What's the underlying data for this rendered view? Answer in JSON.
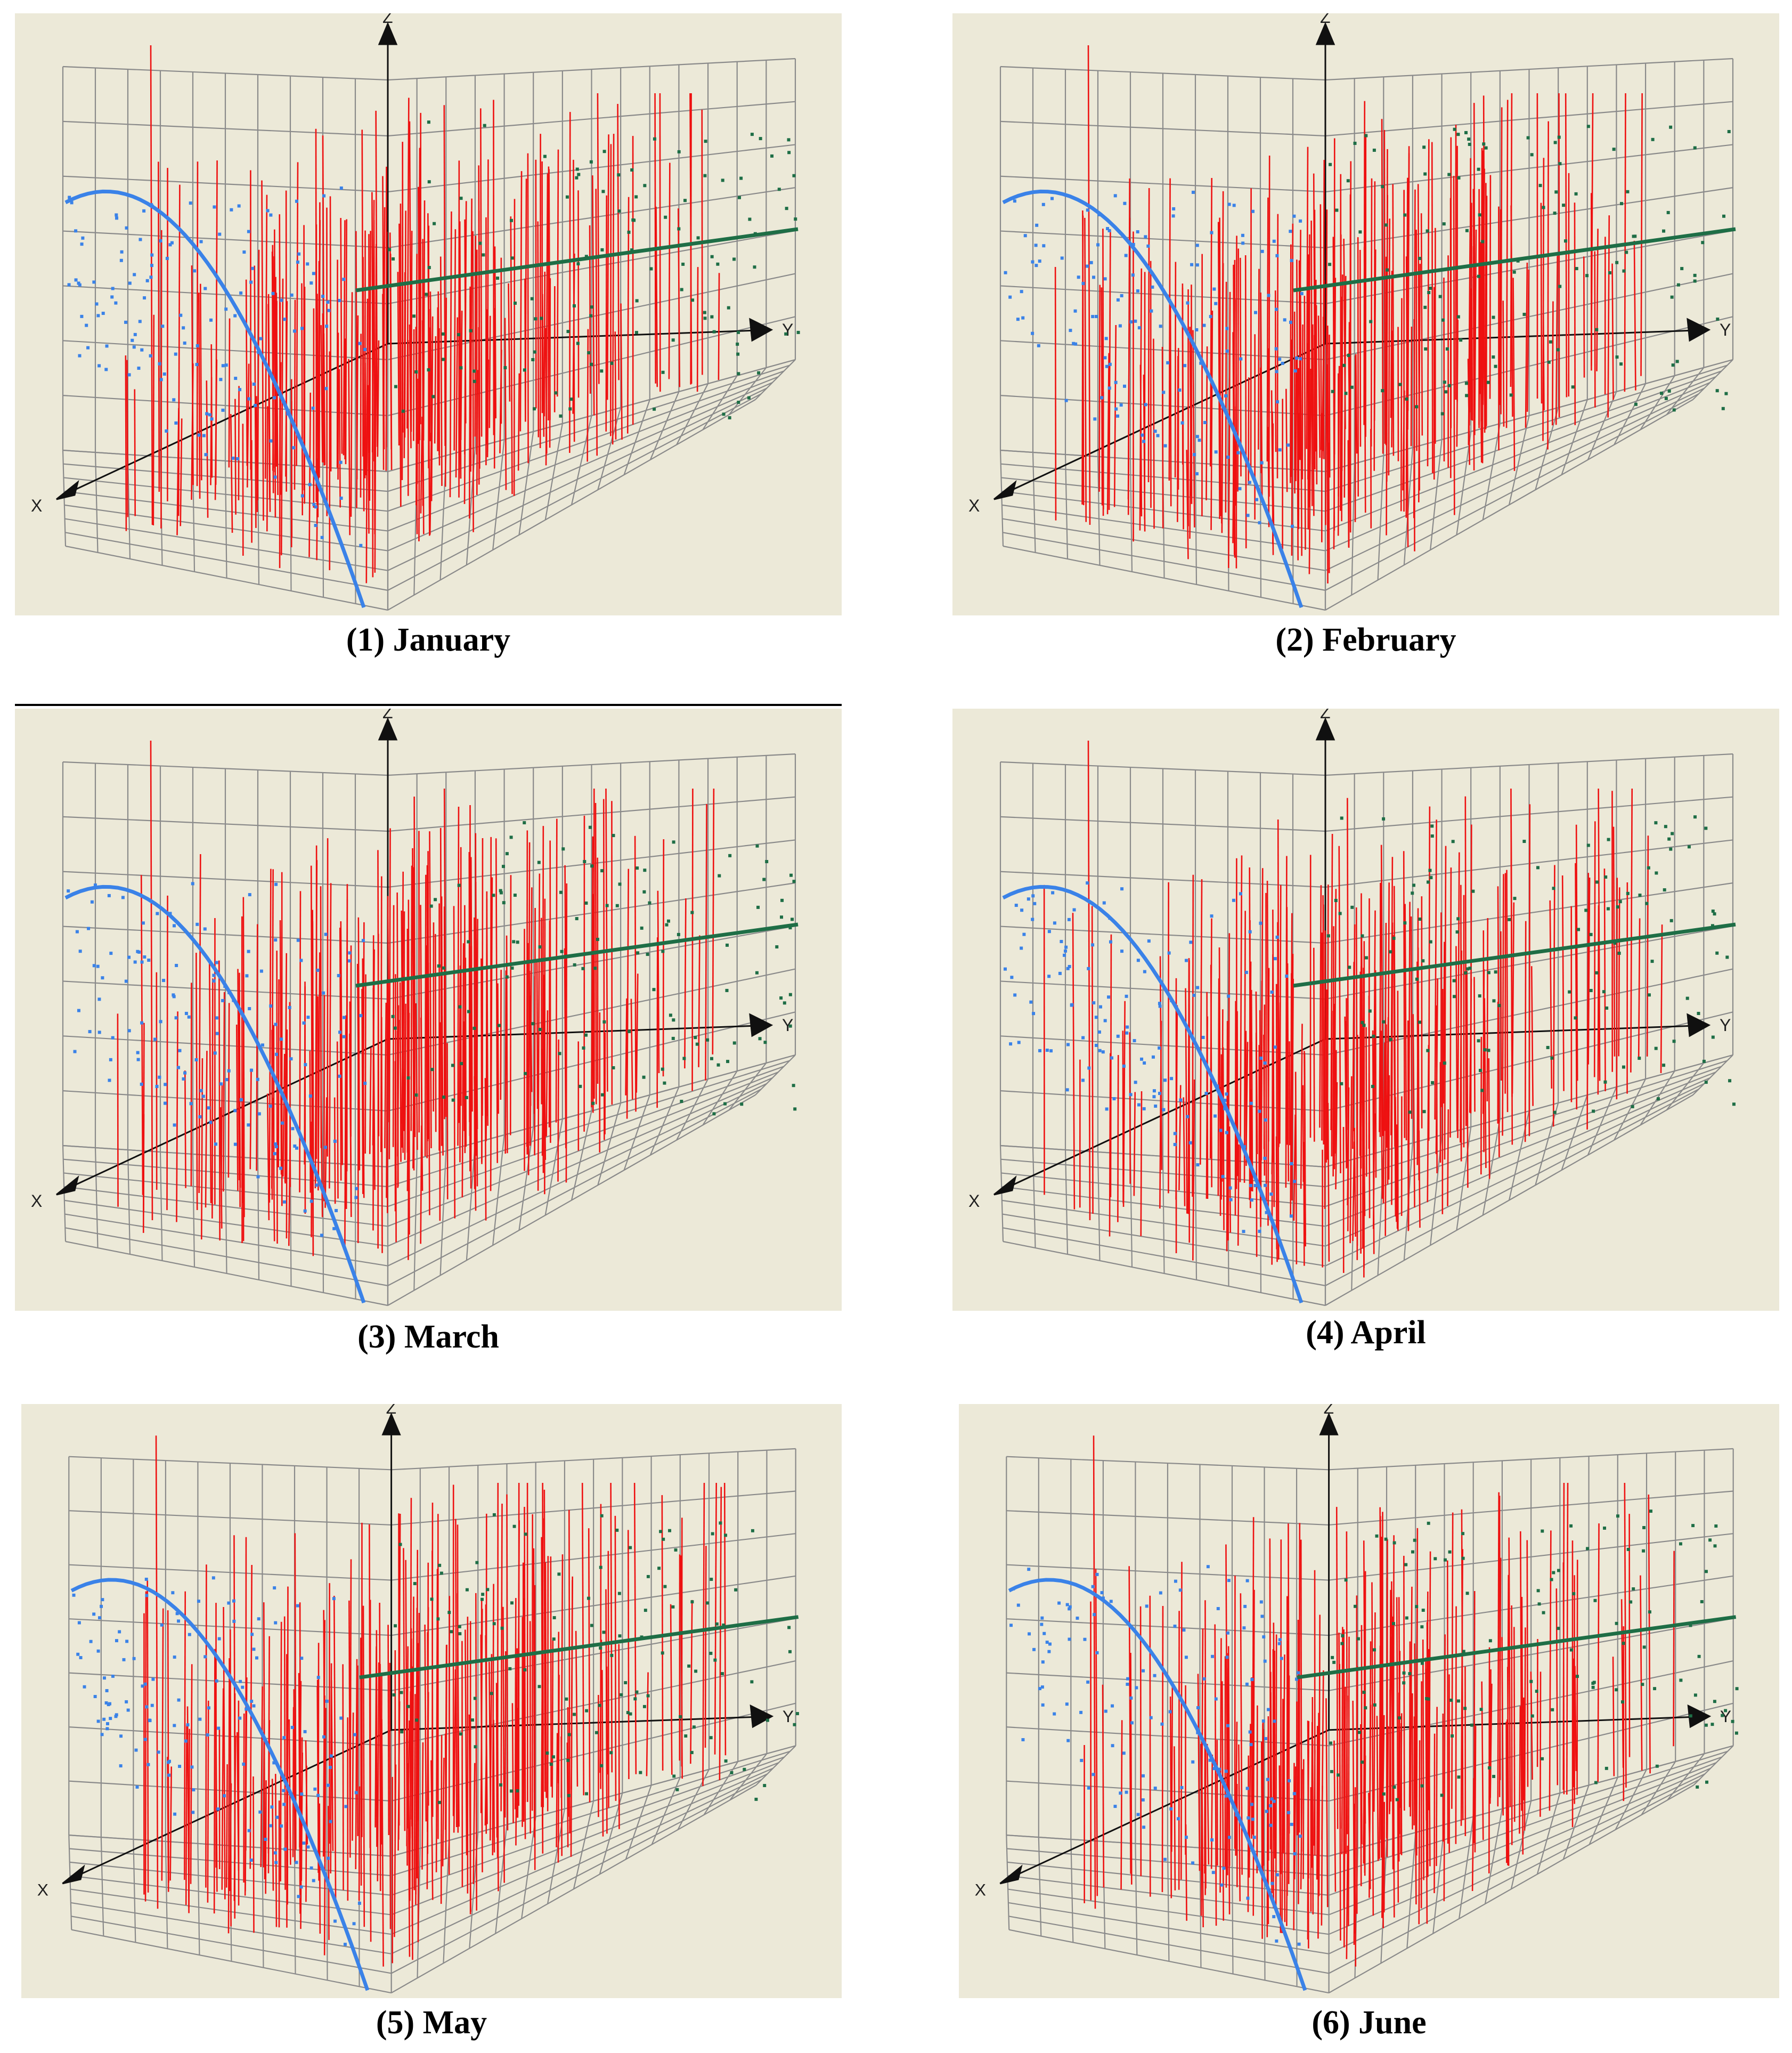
{
  "figure": {
    "panels": [
      {
        "caption": "(1) January",
        "axes": {
          "x": "X",
          "y": "Y",
          "z": "Z"
        }
      },
      {
        "caption": "(2) February",
        "axes": {
          "x": "X",
          "y": "Y",
          "z": "Z"
        }
      },
      {
        "caption": "(3) March",
        "axes": {
          "x": "X",
          "y": "Y",
          "z": "Z"
        }
      },
      {
        "caption": "(4) April",
        "axes": {
          "x": "X",
          "y": "Y",
          "z": "Z"
        }
      },
      {
        "caption": "(5) May",
        "axes": {
          "x": "X",
          "y": "Y",
          "z": "Z"
        }
      },
      {
        "caption": "(6) June",
        "axes": {
          "x": "X",
          "y": "Y",
          "z": "Z"
        }
      }
    ]
  },
  "chart_data": [
    {
      "type": "scatter",
      "view": "3d",
      "title": "(1) January",
      "axes": [
        "X",
        "Y",
        "Z"
      ],
      "grid": true,
      "series": [
        {
          "plane": "X-Z projection",
          "color": "#3a82e8",
          "fit": "quadratic"
        },
        {
          "plane": "Y-Z projection",
          "color": "#1e6e46",
          "fit": "linear"
        },
        {
          "plane": "vertical drop lines",
          "color": "#ee1111"
        }
      ]
    },
    {
      "type": "scatter",
      "view": "3d",
      "title": "(2) February",
      "axes": [
        "X",
        "Y",
        "Z"
      ],
      "grid": true,
      "series": [
        {
          "plane": "X-Z projection",
          "color": "#3a82e8",
          "fit": "quadratic"
        },
        {
          "plane": "Y-Z projection",
          "color": "#1e6e46",
          "fit": "linear"
        },
        {
          "plane": "vertical drop lines",
          "color": "#ee1111"
        }
      ]
    },
    {
      "type": "scatter",
      "view": "3d",
      "title": "(3) March",
      "axes": [
        "X",
        "Y",
        "Z"
      ],
      "grid": true,
      "series": [
        {
          "plane": "X-Z projection",
          "color": "#3a82e8",
          "fit": "quadratic"
        },
        {
          "plane": "Y-Z projection",
          "color": "#1e6e46",
          "fit": "linear"
        },
        {
          "plane": "vertical drop lines",
          "color": "#ee1111"
        }
      ]
    },
    {
      "type": "scatter",
      "view": "3d",
      "title": "(4) April",
      "axes": [
        "X",
        "Y",
        "Z"
      ],
      "grid": true,
      "series": [
        {
          "plane": "X-Z projection",
          "color": "#3a82e8",
          "fit": "quadratic"
        },
        {
          "plane": "Y-Z projection",
          "color": "#1e6e46",
          "fit": "linear"
        },
        {
          "plane": "vertical drop lines",
          "color": "#ee1111"
        }
      ]
    },
    {
      "type": "scatter",
      "view": "3d",
      "title": "(5) May",
      "axes": [
        "X",
        "Y",
        "Z"
      ],
      "grid": true,
      "series": [
        {
          "plane": "X-Z projection",
          "color": "#3a82e8",
          "fit": "quadratic"
        },
        {
          "plane": "Y-Z projection",
          "color": "#1e6e46",
          "fit": "linear"
        },
        {
          "plane": "vertical drop lines",
          "color": "#ee1111"
        }
      ]
    },
    {
      "type": "scatter",
      "view": "3d",
      "title": "(6) June",
      "axes": [
        "X",
        "Y",
        "Z"
      ],
      "grid": true,
      "series": [
        {
          "plane": "X-Z projection",
          "color": "#3a82e8",
          "fit": "quadratic"
        },
        {
          "plane": "Y-Z projection",
          "color": "#1e6e46",
          "fit": "linear"
        },
        {
          "plane": "vertical drop lines",
          "color": "#ee1111"
        }
      ]
    }
  ]
}
